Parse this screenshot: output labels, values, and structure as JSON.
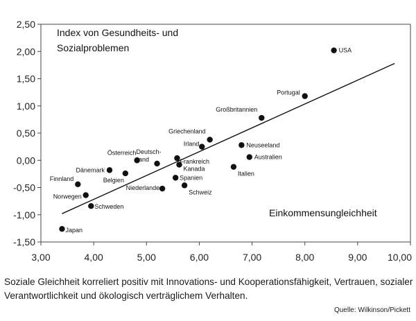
{
  "chart_data": {
    "type": "scatter",
    "title_lines": [
      "Index von Gesundheits- und",
      "Sozialproblemen"
    ],
    "xlabel": "Einkommensungleichheit",
    "xlim": [
      3.0,
      10.0
    ],
    "ylim": [
      -1.5,
      2.5
    ],
    "xticks": [
      "3,00",
      "4,00",
      "5,00",
      "6,00",
      "7,00",
      "8,00",
      "9,00",
      "10,00"
    ],
    "yticks": [
      "2,50",
      "2,00",
      "1,50",
      "1,00",
      "0,50",
      "0,00",
      "-0,50",
      "-1,00",
      "-1,50"
    ],
    "grid": false,
    "trend_line": {
      "x": [
        3.4,
        9.7
      ],
      "y": [
        -0.98,
        1.78
      ]
    },
    "points": [
      {
        "label": "USA",
        "x": 8.55,
        "y": 2.02
      },
      {
        "label": "Portugal",
        "x": 8.0,
        "y": 1.18
      },
      {
        "label": "Großbritannien",
        "x": 7.18,
        "y": 0.78
      },
      {
        "label": "Griechenland",
        "x": 6.2,
        "y": 0.38
      },
      {
        "label": "Irland",
        "x": 6.05,
        "y": 0.25
      },
      {
        "label": "Neuseeland",
        "x": 6.8,
        "y": 0.28
      },
      {
        "label": "Australien",
        "x": 6.95,
        "y": 0.06
      },
      {
        "label": "Italien",
        "x": 6.65,
        "y": -0.12
      },
      {
        "label": "Deutsch-land",
        "x": 5.2,
        "y": -0.06
      },
      {
        "label": "Frankreich",
        "x": 5.58,
        "y": 0.04
      },
      {
        "label": "Kanada",
        "x": 5.62,
        "y": -0.08
      },
      {
        "label": "Österreich",
        "x": 4.82,
        "y": 0.0
      },
      {
        "label": "Dänemark",
        "x": 4.3,
        "y": -0.18
      },
      {
        "label": "Belgien",
        "x": 4.6,
        "y": -0.24
      },
      {
        "label": "Spanien",
        "x": 5.55,
        "y": -0.32
      },
      {
        "label": "Schweiz",
        "x": 5.72,
        "y": -0.46
      },
      {
        "label": "Niederlande",
        "x": 5.3,
        "y": -0.52
      },
      {
        "label": "Finnland",
        "x": 3.7,
        "y": -0.44
      },
      {
        "label": "Norwegen",
        "x": 3.85,
        "y": -0.64
      },
      {
        "label": "Schweden",
        "x": 3.95,
        "y": -0.84
      },
      {
        "label": "Japan",
        "x": 3.4,
        "y": -1.26
      }
    ]
  },
  "caption": "Soziale Gleichheit korreliert positiv mit Innovations- und Kooperationsfähigkeit, Vertrauen, sozialer Verantwortlichkeit und ökologisch verträglichem Verhalten.",
  "source": "Quelle: Wilkinson/Pickett"
}
